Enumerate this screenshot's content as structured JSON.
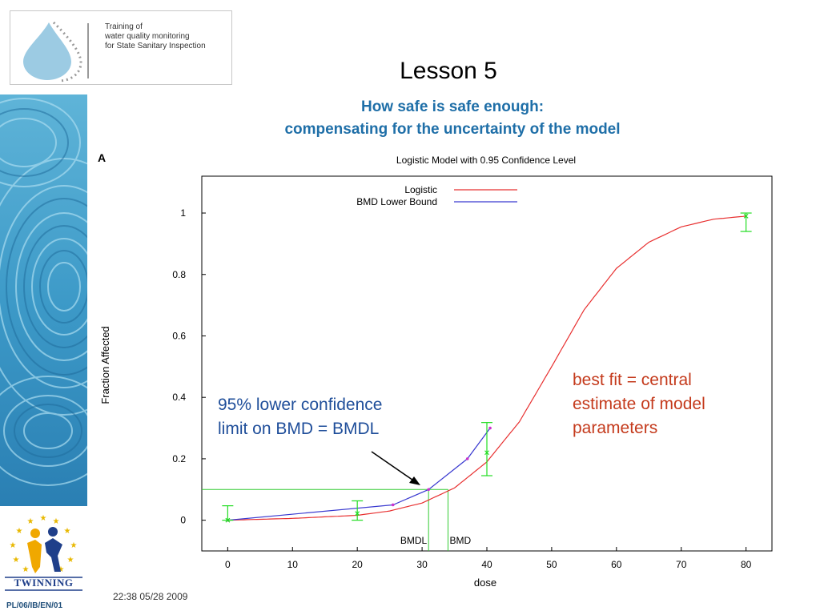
{
  "header": {
    "logo_lines": [
      "Training of",
      "water quality monitoring",
      "for State Sanitary Inspection"
    ],
    "title": "Lesson 5",
    "subtitle_line1": "How safe is safe enough:",
    "subtitle_line2": "compensating for the uncertainty of the model"
  },
  "footer": {
    "code": "PL/06/IB/EN/01",
    "timestamp": "22:38 05/28 2009",
    "twinning_label": "TWINNING"
  },
  "annotations": {
    "bmdl_line1": "95% lower confidence",
    "bmdl_line2": "limit on BMD = BMDL",
    "best_line1": "best fit = central",
    "best_line2": "estimate of model",
    "best_line3": "parameters"
  },
  "colors": {
    "logistic": "#e83030",
    "bound": "#3a3ad0",
    "errorbar": "#22dd22",
    "refline": "#33cc33"
  },
  "chart_data": {
    "type": "line",
    "panel_label": "A",
    "title": "Logistic Model with 0.95 Confidence Level",
    "xlabel": "dose",
    "ylabel": "Fraction Affected",
    "xlim": [
      -4,
      84
    ],
    "ylim": [
      -0.1,
      1.12
    ],
    "xticks": [
      0,
      10,
      20,
      30,
      40,
      50,
      60,
      70,
      80
    ],
    "yticks": [
      0,
      0.2,
      0.4,
      0.6,
      0.8,
      1
    ],
    "ytick_labels": [
      "0",
      "0.2",
      "0.4",
      "0.6",
      "0.8",
      "1"
    ],
    "grid": false,
    "legend_position": "top-right",
    "series": [
      {
        "name": "Logistic",
        "curve": "logistic",
        "x": [
          0,
          10,
          20,
          25,
          30,
          35,
          40,
          45,
          50,
          55,
          60,
          65,
          70,
          75,
          80
        ],
        "y": [
          0.0,
          0.006,
          0.016,
          0.03,
          0.056,
          0.105,
          0.19,
          0.32,
          0.5,
          0.685,
          0.82,
          0.905,
          0.955,
          0.98,
          0.99
        ]
      },
      {
        "name": "BMD Lower Bound",
        "curve": "bound",
        "x": [
          0,
          25.5,
          31,
          37,
          40.5
        ],
        "y": [
          0.0,
          0.05,
          0.1,
          0.2,
          0.3
        ]
      }
    ],
    "data_points": [
      {
        "x": 0,
        "y": 0.0,
        "lower": 0.0,
        "upper": 0.047
      },
      {
        "x": 20,
        "y": 0.022,
        "lower": 0.0,
        "upper": 0.063
      },
      {
        "x": 40,
        "y": 0.22,
        "lower": 0.145,
        "upper": 0.318
      },
      {
        "x": 80,
        "y": 0.99,
        "lower": 0.94,
        "upper": 1.0
      }
    ],
    "bmr": 0.1,
    "bmdl": 31,
    "bmd": 34,
    "bmdl_label": "BMDL",
    "bmd_label": "BMD"
  }
}
